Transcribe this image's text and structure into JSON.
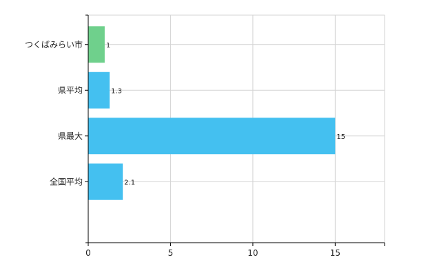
{
  "chart_data": {
    "type": "bar",
    "orientation": "horizontal",
    "categories": [
      "つくばみらい市",
      "県平均",
      "県最大",
      "全国平均"
    ],
    "values": [
      1,
      1.3,
      15,
      2.1
    ],
    "data_labels": [
      "1",
      "1.3",
      "15",
      "2.1"
    ],
    "bar_colors": [
      "#6fd08c",
      "#44c0f0",
      "#44c0f0",
      "#44c0f0"
    ],
    "xlim": [
      0,
      18
    ],
    "x_ticks": [
      0,
      5,
      10,
      15
    ],
    "grid": true,
    "title": "",
    "xlabel": "",
    "ylabel": ""
  }
}
